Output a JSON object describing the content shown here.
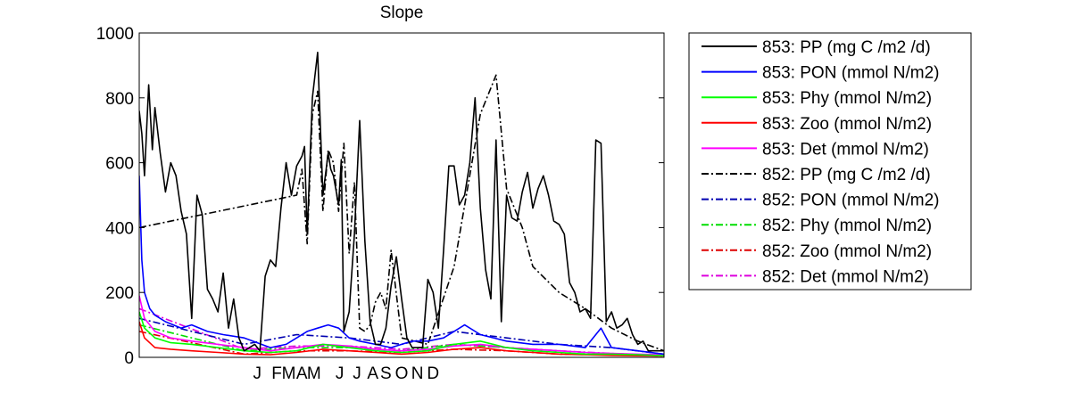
{
  "chart_data": {
    "type": "line",
    "title": "Slope",
    "xlabel": "",
    "ylabel": "",
    "ylim": [
      0,
      1000
    ],
    "yticks": [
      0,
      200,
      400,
      600,
      800,
      1000
    ],
    "xlim": [
      0,
      1
    ],
    "xtick_labels": [
      {
        "label": "J",
        "x": 0.225
      },
      {
        "label": "F",
        "x": 0.262
      },
      {
        "label": "M",
        "x": 0.285
      },
      {
        "label": "A",
        "x": 0.31
      },
      {
        "label": "M",
        "x": 0.333
      },
      {
        "label": "J",
        "x": 0.382
      },
      {
        "label": "J",
        "x": 0.415
      },
      {
        "label": "A",
        "x": 0.445
      },
      {
        "label": "S",
        "x": 0.47
      },
      {
        "label": "O",
        "x": 0.5
      },
      {
        "label": "N",
        "x": 0.53
      },
      {
        "label": "D",
        "x": 0.56
      }
    ],
    "grid": false,
    "legend_position": "outside-right",
    "series": [
      {
        "name": "853: PP (mg C /m2 /d)",
        "color": "#000000",
        "dash": "solid",
        "x": [
          0,
          0.005,
          0.01,
          0.018,
          0.025,
          0.03,
          0.04,
          0.05,
          0.06,
          0.07,
          0.08,
          0.09,
          0.1,
          0.11,
          0.12,
          0.13,
          0.14,
          0.15,
          0.16,
          0.17,
          0.18,
          0.19,
          0.2,
          0.21,
          0.22,
          0.23,
          0.24,
          0.25,
          0.26,
          0.27,
          0.28,
          0.29,
          0.3,
          0.31,
          0.315,
          0.32,
          0.33,
          0.34,
          0.35,
          0.36,
          0.365,
          0.37,
          0.38,
          0.385,
          0.39,
          0.4,
          0.41,
          0.42,
          0.43,
          0.44,
          0.45,
          0.46,
          0.47,
          0.48,
          0.49,
          0.5,
          0.51,
          0.52,
          0.53,
          0.54,
          0.55,
          0.56,
          0.57,
          0.58,
          0.59,
          0.6,
          0.61,
          0.62,
          0.63,
          0.64,
          0.65,
          0.66,
          0.67,
          0.68,
          0.69,
          0.7,
          0.71,
          0.72,
          0.73,
          0.74,
          0.75,
          0.76,
          0.77,
          0.78,
          0.79,
          0.8,
          0.81,
          0.82,
          0.83,
          0.84,
          0.85,
          0.86,
          0.87,
          0.88,
          0.89,
          0.9,
          0.91,
          0.92,
          0.93,
          0.94,
          0.95,
          0.96,
          0.97,
          0.98,
          0.99,
          1.0
        ],
        "y": [
          760,
          690,
          560,
          840,
          640,
          770,
          630,
          510,
          600,
          560,
          450,
          380,
          120,
          500,
          440,
          210,
          180,
          140,
          260,
          90,
          180,
          60,
          20,
          30,
          40,
          20,
          250,
          300,
          280,
          460,
          600,
          500,
          590,
          620,
          650,
          380,
          800,
          940,
          500,
          630,
          580,
          560,
          470,
          610,
          80,
          140,
          380,
          730,
          360,
          110,
          40,
          40,
          90,
          220,
          310,
          180,
          60,
          30,
          30,
          30,
          240,
          200,
          90,
          330,
          590,
          590,
          470,
          500,
          600,
          800,
          460,
          270,
          180,
          670,
          110,
          500,
          430,
          420,
          510,
          570,
          460,
          520,
          560,
          500,
          420,
          410,
          380,
          230,
          200,
          140,
          150,
          120,
          670,
          660,
          110,
          140,
          90,
          100,
          120,
          70,
          40,
          50,
          20,
          20,
          20,
          20
        ]
      },
      {
        "name": "853: PON (mmol N/m2)",
        "color": "#0000ff",
        "dash": "solid",
        "x": [
          0,
          0.005,
          0.01,
          0.02,
          0.03,
          0.05,
          0.08,
          0.1,
          0.13,
          0.16,
          0.2,
          0.25,
          0.28,
          0.3,
          0.32,
          0.34,
          0.36,
          0.38,
          0.4,
          0.42,
          0.45,
          0.48,
          0.5,
          0.52,
          0.55,
          0.58,
          0.6,
          0.62,
          0.65,
          0.7,
          0.75,
          0.8,
          0.85,
          0.88,
          0.9,
          0.95,
          1.0
        ],
        "y": [
          560,
          300,
          200,
          150,
          130,
          110,
          90,
          100,
          80,
          70,
          60,
          30,
          40,
          60,
          80,
          90,
          100,
          90,
          60,
          50,
          40,
          30,
          40,
          50,
          50,
          60,
          80,
          100,
          70,
          50,
          40,
          40,
          30,
          90,
          30,
          20,
          10
        ]
      },
      {
        "name": "853: Phy (mmol N/m2)",
        "color": "#00ff00",
        "dash": "solid",
        "x": [
          0,
          0.01,
          0.03,
          0.06,
          0.1,
          0.15,
          0.2,
          0.25,
          0.3,
          0.35,
          0.4,
          0.45,
          0.5,
          0.55,
          0.6,
          0.65,
          0.7,
          0.75,
          0.8,
          0.85,
          0.9,
          0.95,
          1.0
        ],
        "y": [
          140,
          90,
          60,
          45,
          40,
          30,
          20,
          15,
          20,
          40,
          30,
          20,
          15,
          20,
          40,
          50,
          30,
          20,
          15,
          10,
          10,
          8,
          5
        ]
      },
      {
        "name": "853: Zoo (mmol N/m2)",
        "color": "#ff0000",
        "dash": "solid",
        "x": [
          0,
          0.01,
          0.03,
          0.06,
          0.1,
          0.15,
          0.2,
          0.25,
          0.3,
          0.35,
          0.4,
          0.45,
          0.5,
          0.55,
          0.6,
          0.65,
          0.7,
          0.75,
          0.8,
          0.85,
          0.9,
          0.95,
          1.0
        ],
        "y": [
          110,
          60,
          30,
          25,
          20,
          15,
          10,
          8,
          15,
          25,
          20,
          15,
          10,
          15,
          25,
          30,
          20,
          15,
          10,
          8,
          6,
          5,
          4
        ]
      },
      {
        "name": "853: Det (mmol N/m2)",
        "color": "#ff00ff",
        "dash": "solid",
        "x": [
          0,
          0.01,
          0.03,
          0.06,
          0.1,
          0.15,
          0.2,
          0.25,
          0.3,
          0.35,
          0.4,
          0.45,
          0.5,
          0.55,
          0.6,
          0.65,
          0.7,
          0.75,
          0.8,
          0.85,
          0.9,
          0.95,
          1.0
        ],
        "y": [
          190,
          120,
          80,
          60,
          50,
          40,
          30,
          20,
          30,
          40,
          35,
          25,
          20,
          25,
          35,
          40,
          30,
          25,
          20,
          15,
          12,
          10,
          8
        ]
      },
      {
        "name": "852: PP (mg C /m2 /d)",
        "color": "#000000",
        "dash": "dashdot",
        "x": [
          0,
          0.3,
          0.31,
          0.32,
          0.33,
          0.34,
          0.35,
          0.36,
          0.37,
          0.38,
          0.39,
          0.4,
          0.41,
          0.42,
          0.43,
          0.44,
          0.45,
          0.46,
          0.47,
          0.48,
          0.5,
          0.55,
          0.6,
          0.65,
          0.68,
          0.7,
          0.73,
          0.75,
          0.8,
          0.85,
          0.9,
          0.95,
          1.0
        ],
        "y": [
          400,
          500,
          580,
          350,
          750,
          820,
          450,
          640,
          600,
          450,
          660,
          320,
          540,
          90,
          80,
          100,
          170,
          200,
          150,
          330,
          60,
          40,
          280,
          750,
          870,
          520,
          400,
          280,
          200,
          150,
          90,
          50,
          20
        ]
      },
      {
        "name": "852: PON (mmol N/m2)",
        "color": "#0000b0",
        "dash": "dashdot",
        "x": [
          0,
          0.2,
          0.3,
          0.4,
          0.5,
          0.6,
          0.7,
          0.8,
          0.9,
          1.0
        ],
        "y": [
          120,
          40,
          70,
          60,
          40,
          80,
          60,
          40,
          30,
          10
        ]
      },
      {
        "name": "852: Phy (mmol N/m2)",
        "color": "#00dd00",
        "dash": "dashdot",
        "x": [
          0,
          0.2,
          0.3,
          0.4,
          0.5,
          0.6,
          0.7,
          0.8,
          0.9,
          1.0
        ],
        "y": [
          100,
          20,
          30,
          30,
          20,
          40,
          30,
          20,
          10,
          5
        ]
      },
      {
        "name": "852: Zoo (mmol N/m2)",
        "color": "#dd0000",
        "dash": "dashdot",
        "x": [
          0,
          0.2,
          0.3,
          0.4,
          0.5,
          0.6,
          0.7,
          0.8,
          0.9,
          1.0
        ],
        "y": [
          80,
          10,
          20,
          20,
          15,
          25,
          20,
          10,
          8,
          4
        ]
      },
      {
        "name": "852: Det (mmol N/m2)",
        "color": "#dd00dd",
        "dash": "dashdot",
        "x": [
          0,
          0.2,
          0.3,
          0.4,
          0.5,
          0.6,
          0.7,
          0.8,
          0.9,
          1.0
        ],
        "y": [
          150,
          25,
          35,
          35,
          25,
          40,
          30,
          20,
          12,
          6
        ]
      }
    ]
  }
}
